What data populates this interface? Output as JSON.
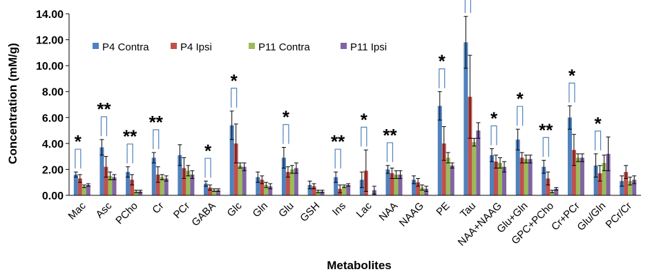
{
  "colors": {
    "P4 Contra": "#4f81bd",
    "P4 Ipsi": "#c0504d",
    "P11 Contra": "#9bbb59",
    "P11 Ipsi": "#8064a2",
    "bracket": "#4f81bd"
  },
  "chart_data": {
    "type": "bar",
    "title": "",
    "xlabel": "Metabolites",
    "ylabel": "Concentration (mM/g)",
    "ylim": [
      0,
      14
    ],
    "yticks": [
      "0.00",
      "2.00",
      "4.00",
      "6.00",
      "8.00",
      "10.00",
      "12.00",
      "14.00"
    ],
    "grid": false,
    "legend_placement": "top-left",
    "categories": [
      "Mac",
      "Asc",
      "PCho",
      "Cr",
      "PCr",
      "GABA",
      "Glc",
      "Gln",
      "Glu",
      "GSH",
      "Ins",
      "Lac",
      "NAA",
      "NAAG",
      "PE",
      "Tau",
      "NAA+NAAG",
      "Glu+Gln",
      "GPC+PCho",
      "Cr+PCr",
      "Glu/Gln",
      "PCr/Cr"
    ],
    "series": [
      {
        "name": "P4 Contra",
        "values": [
          1.6,
          3.7,
          1.8,
          2.9,
          3.1,
          0.9,
          5.4,
          1.4,
          2.9,
          0.8,
          1.4,
          1.2,
          2.0,
          1.2,
          6.9,
          11.8,
          3.1,
          4.3,
          2.2,
          6.0,
          2.3,
          1.1
        ],
        "errors": [
          0.2,
          0.6,
          0.4,
          0.4,
          0.8,
          0.2,
          1.1,
          0.4,
          0.8,
          0.3,
          0.4,
          0.6,
          0.3,
          0.3,
          1.1,
          2.0,
          0.5,
          0.8,
          0.5,
          0.9,
          0.9,
          0.4
        ]
      },
      {
        "name": "P4 Ipsi",
        "values": [
          1.3,
          2.2,
          1.2,
          1.6,
          2.1,
          0.6,
          4.0,
          1.2,
          1.8,
          0.7,
          0.5,
          1.9,
          1.7,
          1.0,
          4.0,
          7.6,
          2.6,
          2.9,
          1.3,
          3.5,
          1.7,
          1.8
        ],
        "errors": [
          0.3,
          0.8,
          0.4,
          0.6,
          0.8,
          0.2,
          1.5,
          0.3,
          0.4,
          0.2,
          0.3,
          1.6,
          0.4,
          0.3,
          1.3,
          3.2,
          0.5,
          0.4,
          0.5,
          1.2,
          0.6,
          0.5
        ]
      },
      {
        "name": "P11 Contra",
        "values": [
          0.7,
          1.5,
          0.3,
          1.4,
          1.9,
          0.4,
          2.3,
          0.8,
          2.0,
          0.3,
          0.7,
          0.0,
          1.6,
          0.6,
          2.9,
          4.1,
          2.5,
          2.8,
          0.3,
          2.9,
          2.5,
          1.1
        ],
        "errors": [
          0.1,
          0.3,
          0.1,
          0.2,
          0.4,
          0.1,
          0.2,
          0.2,
          0.3,
          0.1,
          0.1,
          0.0,
          0.3,
          0.2,
          0.4,
          0.3,
          0.4,
          0.3,
          0.1,
          0.3,
          0.6,
          0.3
        ]
      },
      {
        "name": "P11 Ipsi",
        "values": [
          0.8,
          1.4,
          0.3,
          1.3,
          1.6,
          0.4,
          2.2,
          0.7,
          2.1,
          0.3,
          0.8,
          0.4,
          1.6,
          0.5,
          2.3,
          5.0,
          2.2,
          2.8,
          0.5,
          2.9,
          3.2,
          1.2
        ],
        "errors": [
          0.1,
          0.2,
          0.1,
          0.2,
          0.3,
          0.1,
          0.3,
          0.2,
          0.4,
          0.1,
          0.1,
          0.3,
          0.3,
          0.2,
          0.2,
          0.6,
          0.4,
          0.3,
          0.1,
          0.3,
          1.3,
          0.3
        ]
      }
    ],
    "annotations": {
      "Mac": "*",
      "Asc": "**",
      "PCho": "**",
      "Cr": "**",
      "GABA": "*",
      "Glc": "*",
      "Glu": "*",
      "Ins": "**",
      "Lac": "*",
      "NAA": "**",
      "PE": "*",
      "Tau": "*",
      "NAA+NAAG": "*",
      "Glu+Gln": "*",
      "GPC+PCho": "**",
      "Cr+PCr": "*",
      "Glu/Gln": "*"
    }
  }
}
